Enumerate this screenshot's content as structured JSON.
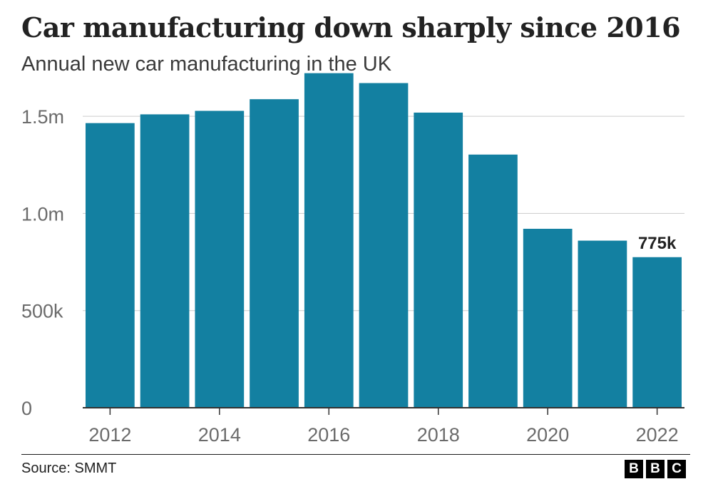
{
  "header": {
    "title": "Car manufacturing down sharply since 2016",
    "subtitle": "Annual new car manufacturing in the UK"
  },
  "footer": {
    "source": "Source: SMMT",
    "logo_letters": [
      "B",
      "B",
      "C"
    ]
  },
  "colors": {
    "bar": "#1380A1",
    "grid": "#cccccc",
    "axis_text": "#6b6b6b",
    "text": "#222222"
  },
  "chart_data": {
    "type": "bar",
    "title": "Car manufacturing down sharply since 2016",
    "subtitle": "Annual new car manufacturing in the UK",
    "categories": [
      "2012",
      "2013",
      "2014",
      "2015",
      "2016",
      "2017",
      "2018",
      "2019",
      "2020",
      "2021",
      "2022"
    ],
    "values": [
      1465000,
      1510000,
      1528000,
      1588000,
      1722000,
      1671000,
      1519000,
      1303000,
      921000,
      860000,
      775000
    ],
    "x_tick_labels": [
      "2012",
      "2014",
      "2016",
      "2018",
      "2020",
      "2022"
    ],
    "y_ticks": [
      0,
      500000,
      1000000,
      1500000
    ],
    "y_tick_labels": [
      "0",
      "500k",
      "1.0m",
      "1.5m"
    ],
    "ylim": [
      0,
      1750000
    ],
    "xlabel": "",
    "ylabel": "",
    "grid": true,
    "annotations": [
      {
        "category": "2022",
        "text": "775k"
      }
    ]
  }
}
